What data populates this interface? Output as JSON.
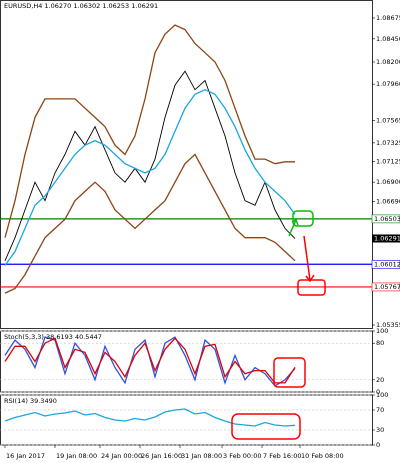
{
  "chart_data": [
    {
      "type": "line",
      "title": "EURUSD,H4 1.06270 1.06302 1.06253 1.06291",
      "xlim": [
        -0.5,
        36.7
      ],
      "ylim": [
        1.05323,
        1.0887
      ],
      "yticks": [
        {
          "value": 1.08675,
          "label": "1.08675"
        },
        {
          "value": 1.0845,
          "label": "1.08450"
        },
        {
          "value": 1.082,
          "label": "1.08200"
        },
        {
          "value": 1.0796,
          "label": "1.07960"
        },
        {
          "value": 1.07565,
          "label": "1.07565"
        },
        {
          "value": 1.07325,
          "label": "1.07325"
        },
        {
          "value": 1.07125,
          "label": "1.07125"
        },
        {
          "value": 1.069,
          "label": "1.06900"
        },
        {
          "value": 1.0669,
          "label": "1.06690"
        },
        {
          "value": 1.05355,
          "label": "1.05355"
        }
      ],
      "series": [
        {
          "name": "Close",
          "color": "#000000",
          "values": [
            1.0605,
            1.063,
            1.066,
            1.069,
            1.067,
            1.07,
            1.072,
            1.0745,
            1.073,
            1.075,
            1.0725,
            1.07,
            1.069,
            1.0705,
            1.069,
            1.0715,
            1.076,
            1.0795,
            1.081,
            1.079,
            1.08,
            1.077,
            1.074,
            1.07,
            1.067,
            1.0665,
            1.069,
            1.066,
            1.064,
            1.0629
          ]
        },
        {
          "name": "MA",
          "color": "#1aa7e0",
          "values": [
            1.06,
            1.0615,
            1.064,
            1.0665,
            1.0675,
            1.069,
            1.0705,
            1.072,
            1.073,
            1.0735,
            1.073,
            1.072,
            1.071,
            1.0705,
            1.07,
            1.0705,
            1.072,
            1.0745,
            1.077,
            1.0785,
            1.079,
            1.0785,
            1.077,
            1.075,
            1.0725,
            1.0705,
            1.069,
            1.068,
            1.067,
            1.0655
          ]
        },
        {
          "name": "BB upper",
          "color": "#8b4513",
          "values": [
            1.063,
            1.067,
            1.072,
            1.076,
            1.078,
            1.078,
            1.078,
            1.078,
            1.077,
            1.076,
            1.075,
            1.073,
            1.072,
            1.074,
            1.078,
            1.083,
            1.085,
            1.086,
            1.0855,
            1.084,
            1.083,
            1.082,
            1.08,
            1.077,
            1.074,
            1.0715,
            1.0715,
            1.071,
            1.0712,
            1.0712
          ]
        },
        {
          "name": "BB lower",
          "color": "#8b4513",
          "values": [
            1.057,
            1.0575,
            1.059,
            1.061,
            1.063,
            1.064,
            1.065,
            1.067,
            1.068,
            1.069,
            1.068,
            1.066,
            1.065,
            1.064,
            1.065,
            1.066,
            1.067,
            1.069,
            1.071,
            1.072,
            1.07,
            1.068,
            1.066,
            1.064,
            1.063,
            1.063,
            1.063,
            1.0625,
            1.0615,
            1.0605
          ]
        }
      ],
      "levels": [
        {
          "value": 1.06503,
          "color": "#008000"
        },
        {
          "value": 1.06012,
          "color": "#0000ff"
        },
        {
          "value": 1.05767,
          "color": "#ff0000"
        }
      ],
      "last": 1.06291
    },
    {
      "type": "line",
      "title": "Stoch(5,3,3) 38.6193 40.5447",
      "xlim": [
        -0.5,
        36.7
      ],
      "ylim": [
        0,
        100
      ],
      "yticks": [
        0,
        20,
        80,
        100
      ],
      "series": [
        {
          "name": "Main",
          "color": "#3050e0",
          "values": [
            60,
            85,
            70,
            40,
            90,
            85,
            30,
            80,
            60,
            20,
            75,
            40,
            15,
            70,
            85,
            25,
            80,
            90,
            60,
            20,
            85,
            70,
            15,
            60,
            20,
            40,
            30,
            10,
            20,
            38.6193
          ]
        },
        {
          "name": "Signal",
          "color": "#e00000",
          "values": [
            50,
            75,
            75,
            50,
            80,
            88,
            40,
            70,
            65,
            30,
            65,
            50,
            25,
            60,
            80,
            35,
            70,
            88,
            70,
            30,
            75,
            78,
            25,
            50,
            30,
            35,
            35,
            15,
            15,
            40.5447
          ]
        }
      ]
    },
    {
      "type": "line",
      "title": "RSI(14) 39.3490",
      "xlim": [
        -0.5,
        36.7
      ],
      "ylim": [
        0,
        100
      ],
      "yticks": [
        0,
        30,
        70,
        100
      ],
      "series": [
        {
          "name": "RSI",
          "color": "#1aa7e0",
          "values": [
            48,
            55,
            60,
            65,
            58,
            62,
            64,
            68,
            60,
            63,
            55,
            50,
            48,
            53,
            50,
            56,
            66,
            70,
            72,
            62,
            65,
            55,
            48,
            42,
            40,
            38,
            45,
            40,
            38,
            39.349
          ]
        }
      ],
      "xticks": [
        {
          "value": 0,
          "label": "16 Jan 2017"
        },
        {
          "value": 5,
          "label": "19 Jan 08:00"
        },
        {
          "value": 9.5,
          "label": "24 Jan 00:00"
        },
        {
          "value": 13.5,
          "label": "26 Jan 16:00"
        },
        {
          "value": 17.5,
          "label": "31 Jan 08:00"
        },
        {
          "value": 21.7,
          "label": "3 Feb 00:00"
        },
        {
          "value": 25.7,
          "label": "7 Feb 16:00"
        },
        {
          "value": 29.5,
          "label": "10 Feb 08:00"
        }
      ]
    }
  ]
}
